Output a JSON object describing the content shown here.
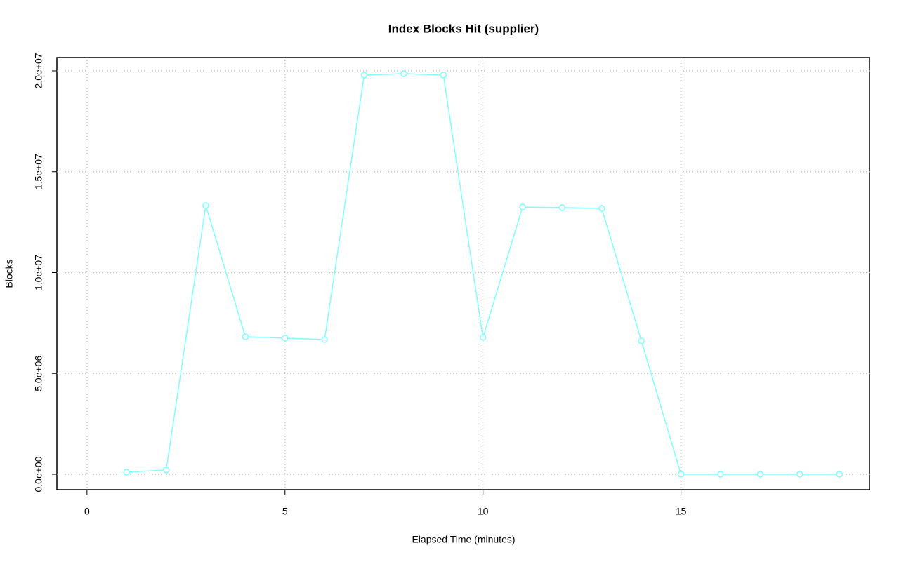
{
  "chart_data": {
    "type": "line",
    "title": "Index Blocks Hit (supplier)",
    "x_label": "Elapsed Time (minutes)",
    "y_label": "Blocks",
    "x": [
      1,
      2,
      3,
      4,
      5,
      6,
      7,
      8,
      9,
      10,
      11,
      12,
      13,
      14,
      15,
      16,
      17,
      18,
      19
    ],
    "series": [
      {
        "name": "supplier",
        "color": "#80ffff",
        "values": [
          104000,
          210000,
          13320000,
          6820000,
          6750000,
          6680000,
          19790000,
          19860000,
          19790000,
          6780000,
          13250000,
          13220000,
          13180000,
          6610000,
          0,
          0,
          0,
          0,
          0
        ]
      }
    ],
    "xlim": [
      -0.76,
      19.76
    ],
    "xticks": [
      0,
      5,
      10,
      15
    ],
    "ylim": [
      -765000,
      20660000
    ],
    "yticks": [
      {
        "value": 0,
        "label": "0.0e+00"
      },
      {
        "value": 5000000,
        "label": "5.0e+06"
      },
      {
        "value": 10000000,
        "label": "1.0e+07"
      },
      {
        "value": 15000000,
        "label": "1.5e+07"
      },
      {
        "value": 20000000,
        "label": "2.0e+07"
      }
    ],
    "grid": true
  }
}
